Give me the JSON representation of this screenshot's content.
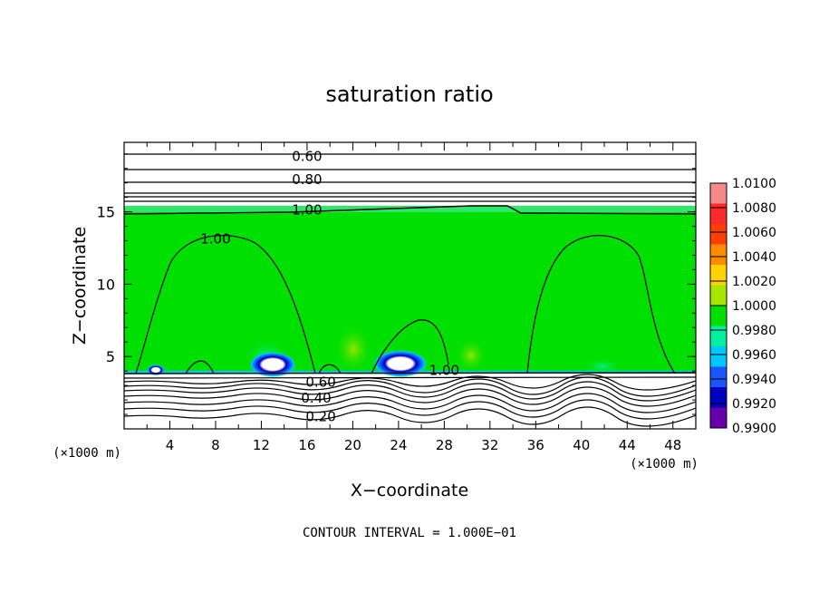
{
  "chart_data": {
    "type": "heatmap",
    "title": "saturation ratio",
    "xlabel": "X−coordinate",
    "ylabel": "Z−coordinate",
    "x_unit_left": "(×1000 m)",
    "x_unit_right": "(×1000 m)",
    "xlim": [
      0,
      50
    ],
    "ylim": [
      0,
      19.8
    ],
    "x_ticks": [
      4,
      8,
      12,
      16,
      20,
      24,
      28,
      32,
      36,
      40,
      44,
      48
    ],
    "y_ticks": [
      5,
      10,
      15
    ],
    "footer": "CONTOUR INTERVAL = 1.000E−01",
    "colorbar": {
      "levels": [
        "1.0100",
        "1.0080",
        "1.0060",
        "1.0040",
        "1.0020",
        "1.0000",
        "0.9980",
        "0.9960",
        "0.9940",
        "0.9920",
        "0.9900"
      ],
      "colors": [
        "#f28a8a",
        "#ff2a2a",
        "#ff3f00",
        "#ff8c00",
        "#ffd200",
        "#a6e600",
        "#00e000",
        "#00f0a0",
        "#00c8ff",
        "#1a55ff",
        "#0000c0",
        "#6600aa"
      ]
    },
    "contour_labels": [
      {
        "text": "0.60",
        "x": 16,
        "z": 18.9
      },
      {
        "text": "0.80",
        "x": 16,
        "z": 17.3
      },
      {
        "text": "1.00",
        "x": 16,
        "z": 15.2
      },
      {
        "text": "1.00",
        "x": 8,
        "z": 13.2
      },
      {
        "text": "1.00",
        "x": 28,
        "z": 4.1
      },
      {
        "text": "0.60",
        "x": 17.2,
        "z": 3.3
      },
      {
        "text": "0.40",
        "x": 16.8,
        "z": 2.2
      },
      {
        "text": "0.20",
        "x": 17.2,
        "z": 0.9
      }
    ]
  }
}
